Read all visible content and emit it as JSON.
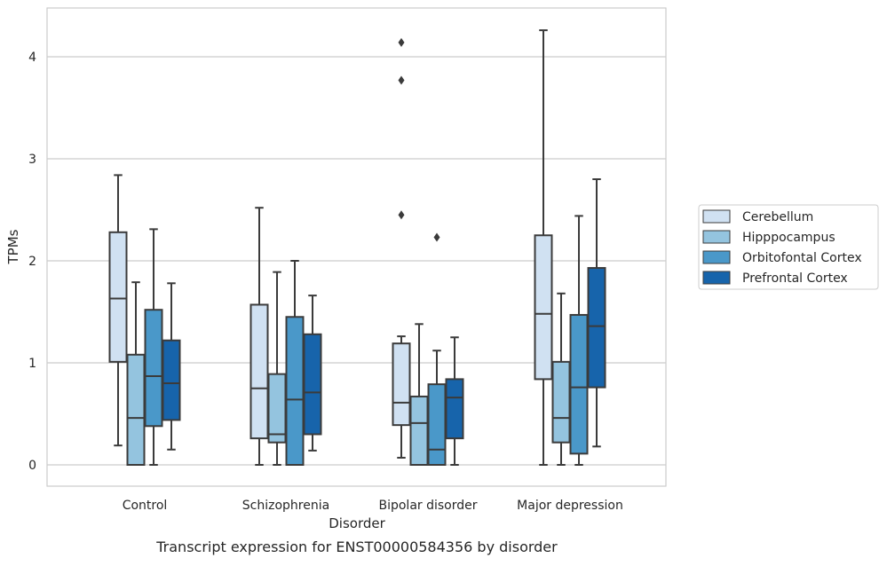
{
  "chart_data": {
    "type": "boxplot",
    "title": "",
    "caption": "Transcript expression for ENST00000584356 by disorder",
    "xlabel": "Disorder",
    "ylabel": "TPMs",
    "ylim": [
      -0.2,
      4.5
    ],
    "yticks": [
      0,
      1,
      2,
      3,
      4
    ],
    "grid": "horizontal",
    "legend_position": "right",
    "categories": [
      "Control",
      "Schizophrenia",
      "Bipolar disorder",
      "Major depression"
    ],
    "series": [
      {
        "name": "Cerebellum",
        "color": "#d0e1f2",
        "boxes": [
          {
            "whislo": 0.19,
            "q1": 1.01,
            "med": 1.63,
            "q3": 2.28,
            "whishi": 2.84,
            "fliers": []
          },
          {
            "whislo": 0.0,
            "q1": 0.26,
            "med": 0.75,
            "q3": 1.57,
            "whishi": 2.52,
            "fliers": []
          },
          {
            "whislo": 0.07,
            "q1": 0.39,
            "med": 0.61,
            "q3": 1.19,
            "whishi": 1.26,
            "fliers": [
              2.45,
              3.77,
              4.14
            ]
          },
          {
            "whislo": 0.0,
            "q1": 0.84,
            "med": 1.48,
            "q3": 2.25,
            "whishi": 4.26,
            "fliers": []
          }
        ]
      },
      {
        "name": "Hipppocampus",
        "color": "#94c4df",
        "boxes": [
          {
            "whislo": 0.0,
            "q1": 0.0,
            "med": 0.46,
            "q3": 1.08,
            "whishi": 1.79,
            "fliers": []
          },
          {
            "whislo": 0.0,
            "q1": 0.22,
            "med": 0.3,
            "q3": 0.89,
            "whishi": 1.89,
            "fliers": []
          },
          {
            "whislo": 0.0,
            "q1": 0.0,
            "med": 0.41,
            "q3": 0.67,
            "whishi": 1.38,
            "fliers": []
          },
          {
            "whislo": 0.0,
            "q1": 0.22,
            "med": 0.46,
            "q3": 1.01,
            "whishi": 1.68,
            "fliers": []
          }
        ]
      },
      {
        "name": "Orbitofontal Cortex",
        "color": "#4a98c9",
        "boxes": [
          {
            "whislo": 0.0,
            "q1": 0.38,
            "med": 0.87,
            "q3": 1.52,
            "whishi": 2.31,
            "fliers": []
          },
          {
            "whislo": 0.0,
            "q1": 0.0,
            "med": 0.64,
            "q3": 1.45,
            "whishi": 2.0,
            "fliers": []
          },
          {
            "whislo": 0.0,
            "q1": 0.0,
            "med": 0.15,
            "q3": 0.79,
            "whishi": 1.12,
            "fliers": [
              2.23
            ]
          },
          {
            "whislo": 0.0,
            "q1": 0.11,
            "med": 0.76,
            "q3": 1.47,
            "whishi": 2.44,
            "fliers": []
          }
        ]
      },
      {
        "name": "Prefrontal Cortex",
        "color": "#1764ab",
        "boxes": [
          {
            "whislo": 0.15,
            "q1": 0.44,
            "med": 0.8,
            "q3": 1.22,
            "whishi": 1.78,
            "fliers": []
          },
          {
            "whislo": 0.14,
            "q1": 0.3,
            "med": 0.71,
            "q3": 1.28,
            "whishi": 1.66,
            "fliers": []
          },
          {
            "whislo": 0.0,
            "q1": 0.26,
            "med": 0.66,
            "q3": 0.84,
            "whishi": 1.25,
            "fliers": []
          },
          {
            "whislo": 0.18,
            "q1": 0.76,
            "med": 1.36,
            "q3": 1.93,
            "whishi": 2.8,
            "fliers": []
          }
        ]
      }
    ]
  }
}
